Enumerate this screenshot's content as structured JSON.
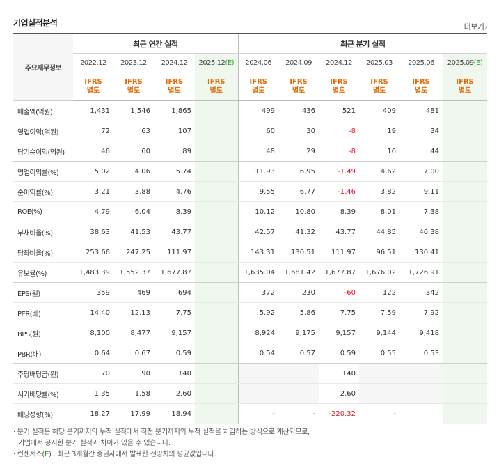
{
  "title": "기업실적분석",
  "more_label": "더보기",
  "annual_header": "최근 연간 실적",
  "quarter_header": "최근 분기 실적",
  "corner_label": "주요재무정보",
  "ifrs_line1": "IFRS",
  "ifrs_line2": "별도",
  "annual_periods": [
    "2022.12",
    "2023.12",
    "2024.12",
    "2025.12(E)"
  ],
  "quarter_periods": [
    "2024.06",
    "2024.09",
    "2024.12",
    "2025.03",
    "2025.06",
    "2025.09(E)"
  ],
  "rows": [
    {
      "label": "매출액(억원)",
      "annual": [
        "1,431",
        "1,546",
        "1,865",
        ""
      ],
      "quarter": [
        "499",
        "436",
        "521",
        "409",
        "481",
        ""
      ]
    },
    {
      "label": "영업이익(억원)",
      "annual": [
        "72",
        "63",
        "107",
        ""
      ],
      "quarter": [
        "60",
        "30",
        "-8",
        "19",
        "34",
        ""
      ]
    },
    {
      "label": "당기순이익(억원)",
      "annual": [
        "46",
        "60",
        "89",
        ""
      ],
      "quarter": [
        "48",
        "29",
        "-8",
        "16",
        "44",
        ""
      ]
    },
    {
      "label": "영업이익률(%)",
      "annual": [
        "5.02",
        "4.06",
        "5.74",
        ""
      ],
      "quarter": [
        "11.93",
        "6.95",
        "-1.49",
        "4.62",
        "7.00",
        ""
      ]
    },
    {
      "label": "순이익률(%)",
      "annual": [
        "3.21",
        "3.88",
        "4.76",
        ""
      ],
      "quarter": [
        "9.55",
        "6.77",
        "-1.46",
        "3.82",
        "9.11",
        ""
      ]
    },
    {
      "label": "ROE(%)",
      "annual": [
        "4.79",
        "6.04",
        "8.39",
        ""
      ],
      "quarter": [
        "10.12",
        "10.80",
        "8.39",
        "8.01",
        "7.38",
        ""
      ]
    },
    {
      "label": "부채비율(%)",
      "annual": [
        "38.63",
        "41.53",
        "43.77",
        ""
      ],
      "quarter": [
        "42.57",
        "41.32",
        "43.77",
        "44.85",
        "40.38",
        ""
      ]
    },
    {
      "label": "당좌비율(%)",
      "annual": [
        "253.66",
        "247.25",
        "111.97",
        ""
      ],
      "quarter": [
        "143.31",
        "130.51",
        "111.97",
        "96.51",
        "130.41",
        ""
      ]
    },
    {
      "label": "유보율(%)",
      "annual": [
        "1,483.39",
        "1,552.37",
        "1,677.87",
        ""
      ],
      "quarter": [
        "1,635.04",
        "1,681.42",
        "1,677.87",
        "1,676.02",
        "1,726.91",
        ""
      ]
    },
    {
      "label": "EPS(원)",
      "annual": [
        "359",
        "469",
        "694",
        ""
      ],
      "quarter": [
        "372",
        "230",
        "-60",
        "122",
        "342",
        ""
      ]
    },
    {
      "label": "PER(배)",
      "annual": [
        "14.40",
        "12.13",
        "7.75",
        ""
      ],
      "quarter": [
        "5.92",
        "5.86",
        "7.75",
        "7.59",
        "7.92",
        ""
      ]
    },
    {
      "label": "BPS(원)",
      "annual": [
        "8,100",
        "8,477",
        "9,157",
        ""
      ],
      "quarter": [
        "8,924",
        "9,175",
        "9,157",
        "9,144",
        "9,418",
        ""
      ]
    },
    {
      "label": "PBR(배)",
      "annual": [
        "0.64",
        "0.67",
        "0.59",
        ""
      ],
      "quarter": [
        "0.54",
        "0.57",
        "0.59",
        "0.55",
        "0.53",
        ""
      ]
    },
    {
      "label": "주당배당금(원)",
      "annual": [
        "70",
        "90",
        "140",
        ""
      ],
      "quarter": [
        "",
        "",
        "140",
        "",
        "",
        ""
      ]
    },
    {
      "label": "시가배당률(%)",
      "annual": [
        "1.35",
        "1.58",
        "2.60",
        ""
      ],
      "quarter": [
        "",
        "",
        "2.60",
        "",
        "",
        ""
      ]
    },
    {
      "label": "배당성향(%)",
      "annual": [
        "18.27",
        "17.99",
        "18.94",
        ""
      ],
      "quarter": [
        "-",
        "-",
        "-220.32",
        "-",
        "",
        ""
      ]
    }
  ],
  "notes": {
    "line1": "분기 실적은 해당 분기까지의 누적 실적에서 직전 분기까지의 누적 실적을 차감하는 방식으로 계산되므로,",
    "line2": "기업에서 공시한 분기 실적과 차이가 있을 수 있습니다.",
    "line3_pre": "컨센서스(",
    "line3_e": "E",
    "line3_post": ") : 최근 3개월간 증권사에서 발표한 전망치의 평균값입니다."
  },
  "colors": {
    "ifrs": "#e06a00",
    "estimate": "#2a9a2a",
    "negative": "#e0182a",
    "estimate_fill": "#f0f7ee"
  }
}
